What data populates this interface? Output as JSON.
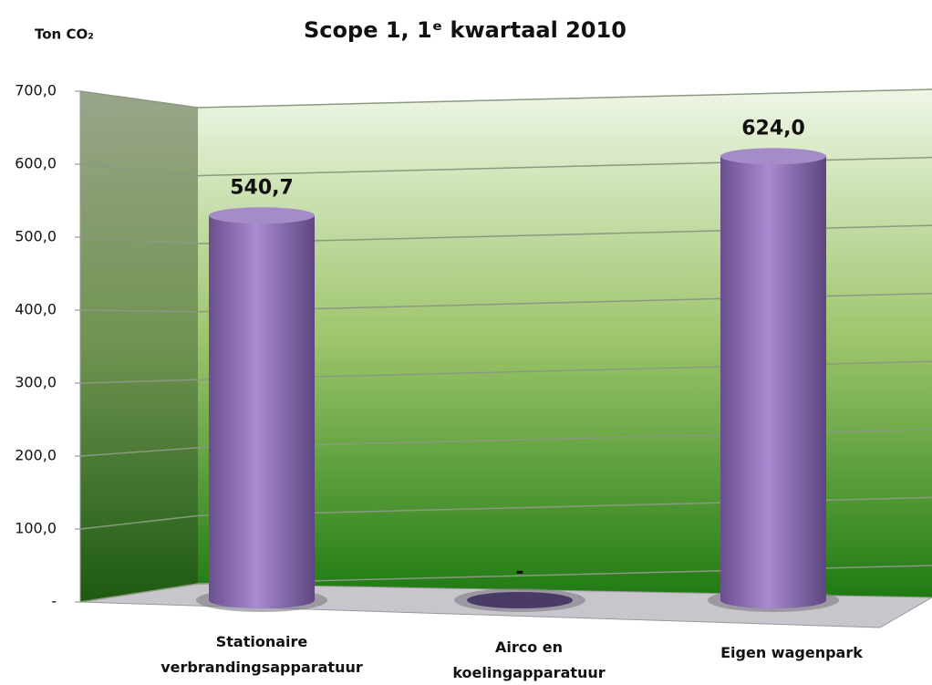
{
  "chart_data": {
    "type": "bar",
    "title": "Scope 1, 1ᵉ kwartaal 2010",
    "y_label": "Ton CO₂",
    "categories": [
      "Stationaire verbrandingsapparatuur",
      "Airco en koelingapparatuur",
      "Eigen wagenpark"
    ],
    "values": [
      540.7,
      0,
      624.0
    ],
    "value_labels": [
      "540,7",
      "-",
      "624,0"
    ],
    "color": "#8b6bb0",
    "ylim": [
      0,
      700
    ],
    "yticks": [
      {
        "value": 0,
        "label": "-"
      },
      {
        "value": 100,
        "label": "100,0"
      },
      {
        "value": 200,
        "label": "200,0"
      },
      {
        "value": 300,
        "label": "300,0"
      },
      {
        "value": 400,
        "label": "400,0"
      },
      {
        "value": 500,
        "label": "500,0"
      },
      {
        "value": 600,
        "label": "600,0"
      },
      {
        "value": 700,
        "label": "700,0"
      }
    ],
    "grid": true
  }
}
